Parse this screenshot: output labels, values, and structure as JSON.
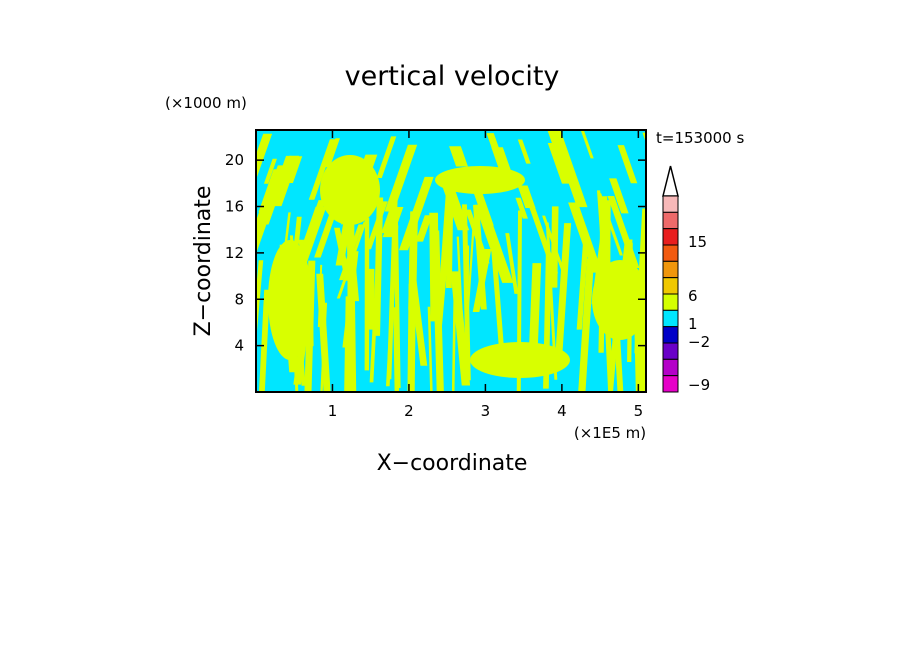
{
  "chart_data": {
    "type": "heatmap",
    "title": "vertical velocity",
    "xlabel": "X−coordinate",
    "ylabel": "Z−coordinate",
    "x_unit": "(×1E5 m)",
    "y_unit": "(×1000 m)",
    "time_label": "t=153000 s",
    "xlim": [
      0,
      5.1
    ],
    "ylim": [
      0,
      22.6
    ],
    "x_ticks": [
      "1",
      "2",
      "3",
      "4",
      "5"
    ],
    "y_ticks": [
      "4",
      "8",
      "12",
      "16",
      "20"
    ],
    "colorbar": {
      "labels": [
        "15",
        "6",
        "1",
        "−2",
        "−9"
      ],
      "colors_top_to_bottom": [
        "#f7b8b8",
        "#ee6a6a",
        "#e81e1e",
        "#f25a10",
        "#f0960c",
        "#f0c800",
        "#d4ff00",
        "#00e6ff",
        "#0000c8",
        "#6a00c8",
        "#b400c8",
        "#e600c8"
      ],
      "extend": "max"
    },
    "field_colors": {
      "positive": "#d8ff00",
      "negative": "#00e6ff"
    }
  }
}
